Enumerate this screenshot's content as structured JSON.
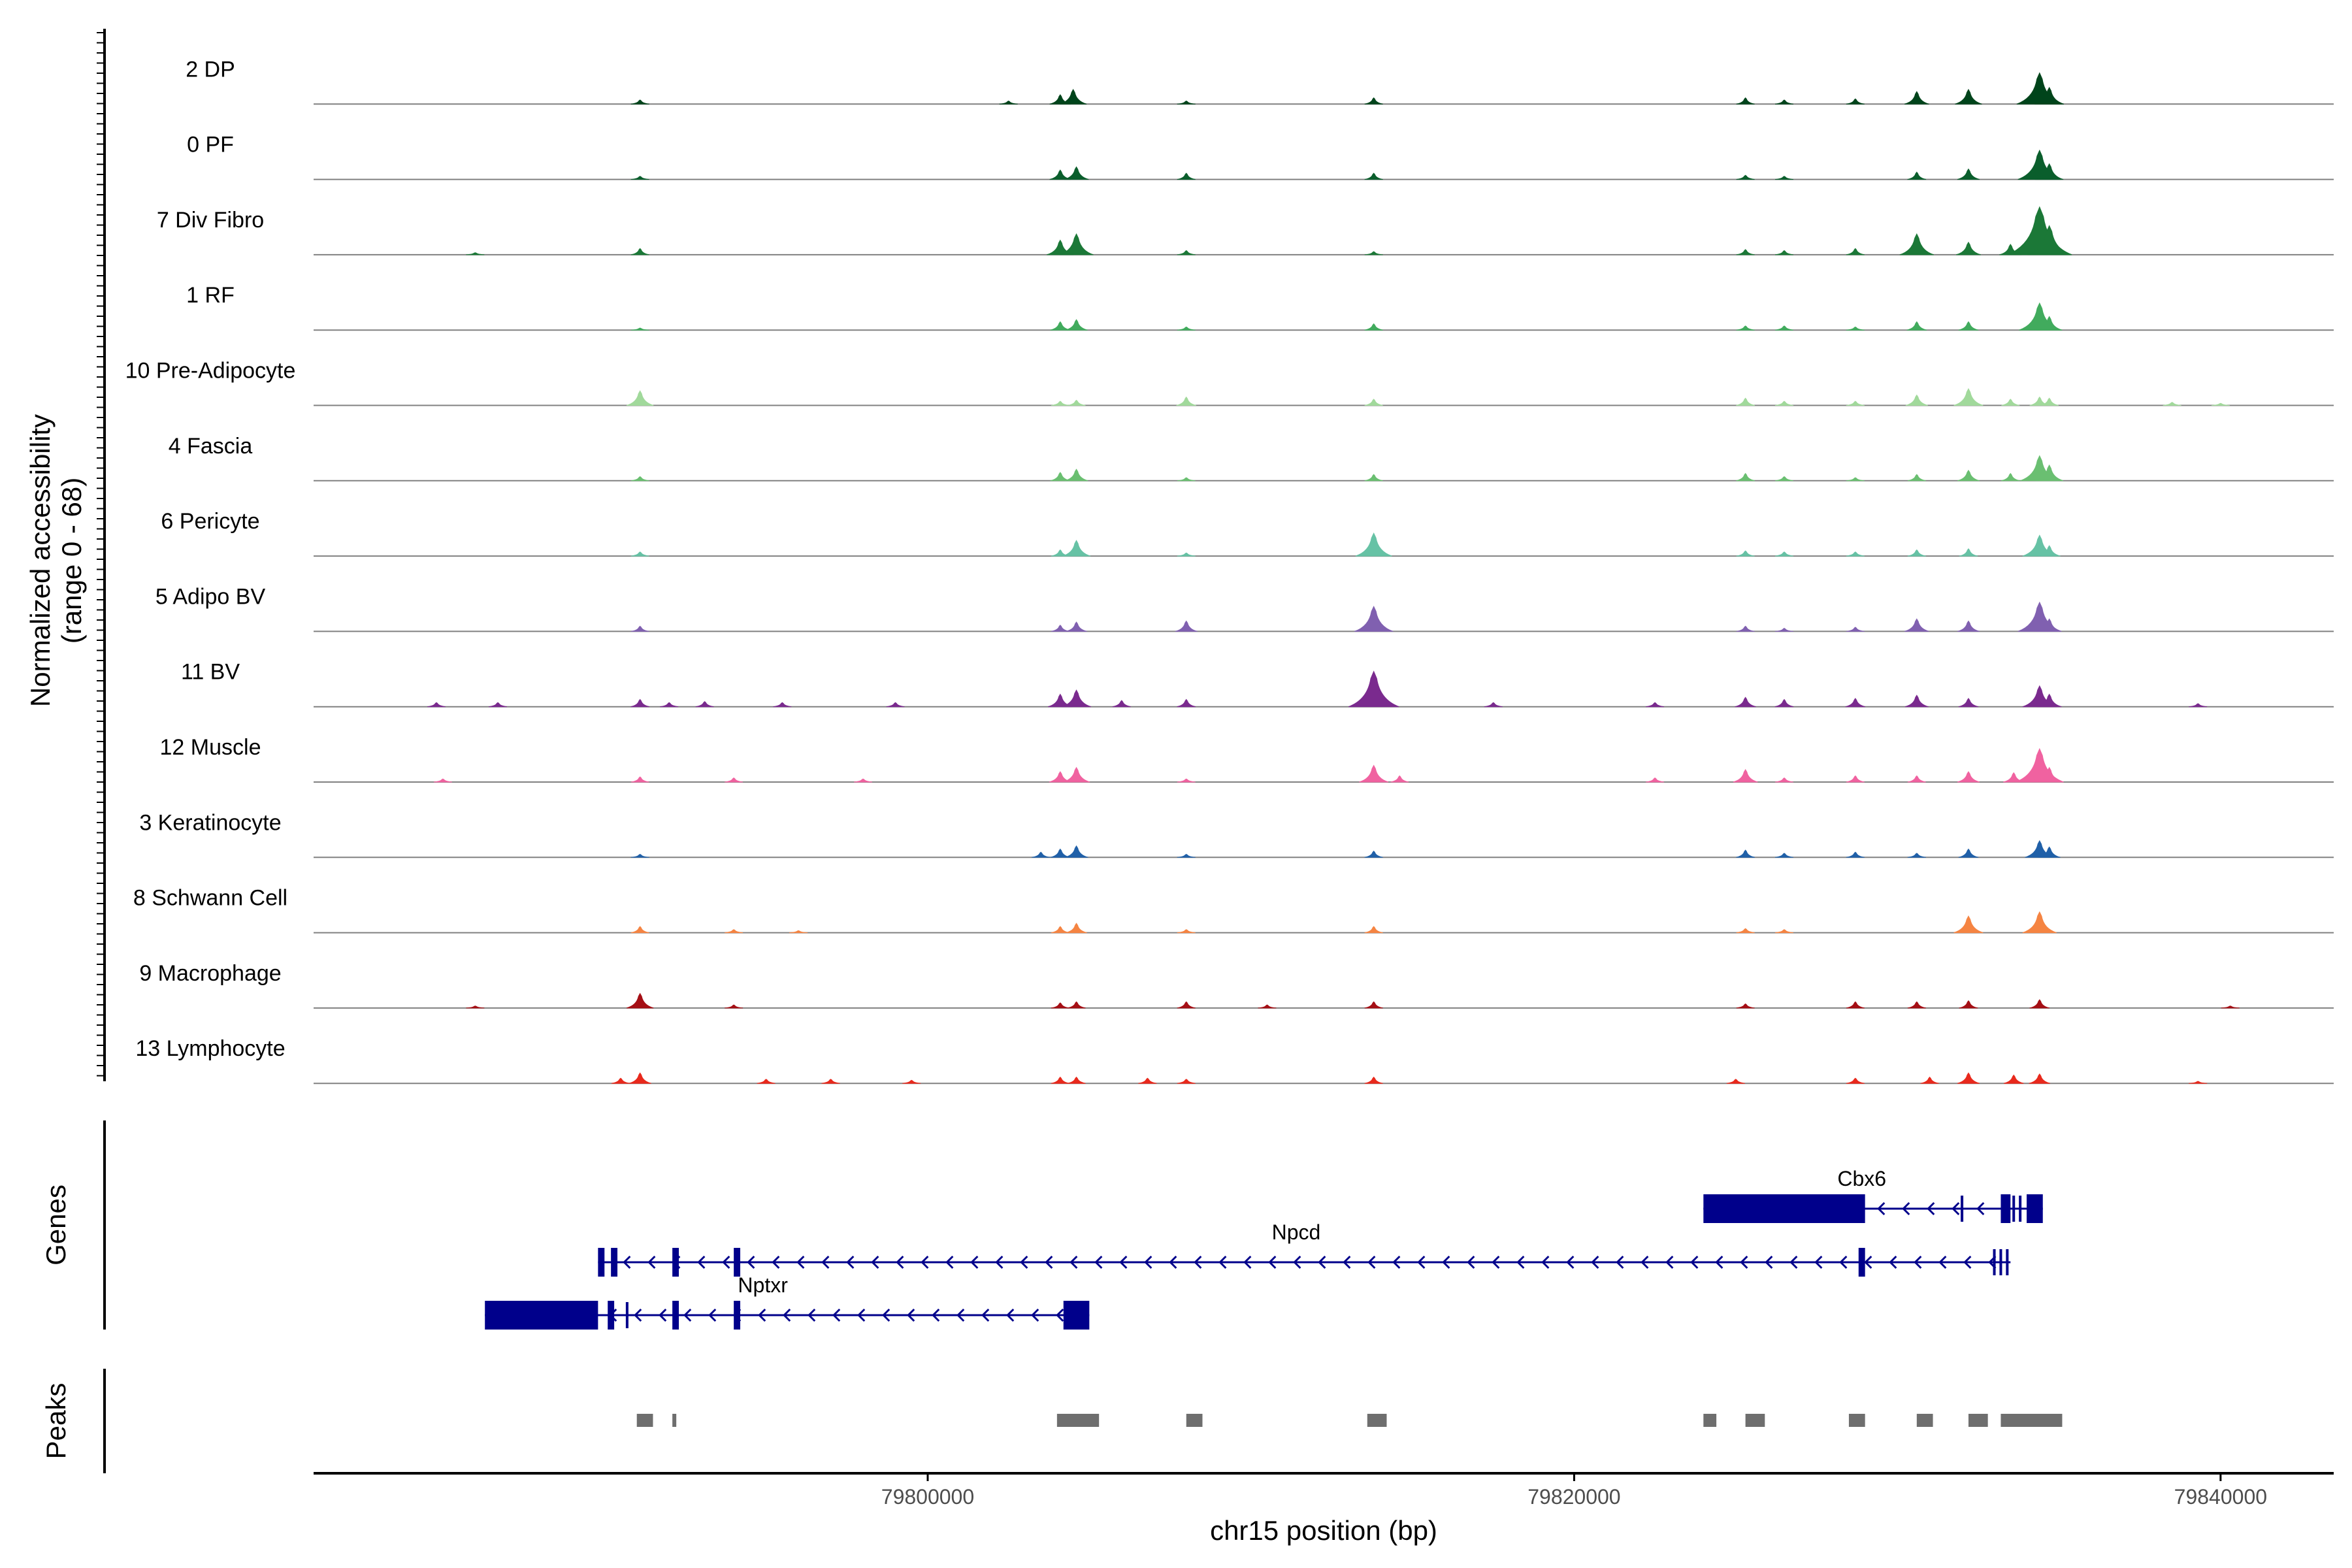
{
  "chart_data": {
    "type": "area",
    "title": "",
    "xlabel": "chr15 position (bp)",
    "ylabel": "Normalized accessibility",
    "ylabel_range": "(range 0 - 68)",
    "xlim": [
      79781000,
      79843500
    ],
    "ylim": [
      0,
      68
    ],
    "x_ticks": [
      {
        "value": 79800000,
        "label": "79800000"
      },
      {
        "value": 79820000,
        "label": "79820000"
      },
      {
        "value": 79840000,
        "label": "79840000"
      }
    ],
    "tracks": [
      {
        "name": "2 DP",
        "color": "#00441b",
        "peaks": [
          [
            79791100,
            4
          ],
          [
            79802500,
            3
          ],
          [
            79804100,
            9
          ],
          [
            79804500,
            14
          ],
          [
            79808000,
            3
          ],
          [
            79813800,
            6
          ],
          [
            79825300,
            6
          ],
          [
            79826500,
            4
          ],
          [
            79828700,
            5
          ],
          [
            79830600,
            12
          ],
          [
            79832200,
            14
          ],
          [
            79834400,
            30
          ],
          [
            79834700,
            16
          ]
        ]
      },
      {
        "name": "0 PF",
        "color": "#0a5e2c",
        "peaks": [
          [
            79791100,
            3
          ],
          [
            79804100,
            9
          ],
          [
            79804600,
            12
          ],
          [
            79808000,
            6
          ],
          [
            79813800,
            6
          ],
          [
            79825300,
            4
          ],
          [
            79826500,
            3
          ],
          [
            79830600,
            7
          ],
          [
            79832200,
            10
          ],
          [
            79834400,
            28
          ],
          [
            79834700,
            15
          ]
        ]
      },
      {
        "name": "7 Div Fibro",
        "color": "#1b7837",
        "peaks": [
          [
            79786000,
            2
          ],
          [
            79791100,
            6
          ],
          [
            79804100,
            14
          ],
          [
            79804600,
            20
          ],
          [
            79808000,
            4
          ],
          [
            79813800,
            3
          ],
          [
            79825300,
            5
          ],
          [
            79826500,
            4
          ],
          [
            79828700,
            6
          ],
          [
            79830600,
            20
          ],
          [
            79832200,
            12
          ],
          [
            79833500,
            10
          ],
          [
            79834400,
            46
          ],
          [
            79834700,
            28
          ]
        ]
      },
      {
        "name": "1 RF",
        "color": "#41ab5d",
        "peaks": [
          [
            79791100,
            2
          ],
          [
            79804100,
            8
          ],
          [
            79804600,
            10
          ],
          [
            79808000,
            3
          ],
          [
            79813800,
            6
          ],
          [
            79825300,
            4
          ],
          [
            79826500,
            4
          ],
          [
            79828700,
            3
          ],
          [
            79830600,
            8
          ],
          [
            79832200,
            8
          ],
          [
            79834400,
            26
          ],
          [
            79834700,
            13
          ]
        ]
      },
      {
        "name": "10 Pre-Adipocyte",
        "color": "#a1d99b",
        "peaks": [
          [
            79791100,
            14
          ],
          [
            79804100,
            4
          ],
          [
            79804600,
            5
          ],
          [
            79808000,
            8
          ],
          [
            79813800,
            6
          ],
          [
            79825300,
            7
          ],
          [
            79826500,
            4
          ],
          [
            79828700,
            4
          ],
          [
            79830600,
            10
          ],
          [
            79832200,
            16
          ],
          [
            79833500,
            6
          ],
          [
            79834400,
            8
          ],
          [
            79834700,
            7
          ],
          [
            79838500,
            3
          ],
          [
            79840000,
            2
          ]
        ]
      },
      {
        "name": "4 Fascia",
        "color": "#6abf71",
        "peaks": [
          [
            79791100,
            4
          ],
          [
            79804100,
            8
          ],
          [
            79804600,
            11
          ],
          [
            79808000,
            3
          ],
          [
            79813800,
            6
          ],
          [
            79825300,
            7
          ],
          [
            79826500,
            4
          ],
          [
            79828700,
            3
          ],
          [
            79830600,
            6
          ],
          [
            79832200,
            10
          ],
          [
            79833500,
            7
          ],
          [
            79834400,
            24
          ],
          [
            79834700,
            15
          ]
        ]
      },
      {
        "name": "6 Pericyte",
        "color": "#66c2a5",
        "peaks": [
          [
            79791100,
            4
          ],
          [
            79804100,
            6
          ],
          [
            79804600,
            15
          ],
          [
            79808000,
            3
          ],
          [
            79813800,
            22
          ],
          [
            79825300,
            5
          ],
          [
            79826500,
            4
          ],
          [
            79828700,
            4
          ],
          [
            79830600,
            6
          ],
          [
            79832200,
            7
          ],
          [
            79834400,
            20
          ],
          [
            79834700,
            10
          ]
        ]
      },
      {
        "name": "5 Adipo BV",
        "color": "#8060b0",
        "peaks": [
          [
            79791100,
            5
          ],
          [
            79804100,
            6
          ],
          [
            79804600,
            9
          ],
          [
            79808000,
            10
          ],
          [
            79813800,
            24
          ],
          [
            79825300,
            5
          ],
          [
            79826500,
            3
          ],
          [
            79828700,
            4
          ],
          [
            79830600,
            12
          ],
          [
            79832200,
            10
          ],
          [
            79834400,
            28
          ],
          [
            79834700,
            12
          ]
        ]
      },
      {
        "name": "11 BV",
        "color": "#7a2a8e",
        "peaks": [
          [
            79784800,
            4
          ],
          [
            79786700,
            4
          ],
          [
            79791100,
            7
          ],
          [
            79792000,
            4
          ],
          [
            79793100,
            5
          ],
          [
            79795500,
            4
          ],
          [
            79799000,
            4
          ],
          [
            79804100,
            12
          ],
          [
            79804600,
            16
          ],
          [
            79806000,
            6
          ],
          [
            79808000,
            7
          ],
          [
            79813800,
            34
          ],
          [
            79817500,
            4
          ],
          [
            79822500,
            4
          ],
          [
            79825300,
            9
          ],
          [
            79826500,
            7
          ],
          [
            79828700,
            8
          ],
          [
            79830600,
            11
          ],
          [
            79832200,
            8
          ],
          [
            79834400,
            20
          ],
          [
            79834700,
            12
          ],
          [
            79839300,
            3
          ]
        ]
      },
      {
        "name": "12 Muscle",
        "color": "#f062a0",
        "peaks": [
          [
            79785000,
            3
          ],
          [
            79791100,
            5
          ],
          [
            79794000,
            4
          ],
          [
            79798000,
            3
          ],
          [
            79804100,
            10
          ],
          [
            79804600,
            14
          ],
          [
            79808000,
            3
          ],
          [
            79813800,
            16
          ],
          [
            79814600,
            6
          ],
          [
            79822500,
            4
          ],
          [
            79825300,
            12
          ],
          [
            79826500,
            4
          ],
          [
            79828700,
            6
          ],
          [
            79830600,
            6
          ],
          [
            79832200,
            10
          ],
          [
            79833600,
            9
          ],
          [
            79834400,
            32
          ],
          [
            79834700,
            14
          ]
        ]
      },
      {
        "name": "3 Keratinocyte",
        "color": "#2060a8",
        "peaks": [
          [
            79791100,
            3
          ],
          [
            79803500,
            5
          ],
          [
            79804100,
            8
          ],
          [
            79804600,
            11
          ],
          [
            79808000,
            3
          ],
          [
            79813800,
            6
          ],
          [
            79825300,
            7
          ],
          [
            79826500,
            4
          ],
          [
            79828700,
            5
          ],
          [
            79830600,
            4
          ],
          [
            79832200,
            8
          ],
          [
            79834400,
            16
          ],
          [
            79834700,
            10
          ]
        ]
      },
      {
        "name": "8 Schwann Cell",
        "color": "#f58442",
        "peaks": [
          [
            79791100,
            6
          ],
          [
            79794000,
            3
          ],
          [
            79796000,
            2
          ],
          [
            79804100,
            6
          ],
          [
            79804600,
            9
          ],
          [
            79808000,
            3
          ],
          [
            79813800,
            6
          ],
          [
            79825300,
            4
          ],
          [
            79826500,
            3
          ],
          [
            79832200,
            16
          ],
          [
            79834400,
            20
          ]
        ]
      },
      {
        "name": "9 Macrophage",
        "color": "#a50f15",
        "peaks": [
          [
            79786000,
            2
          ],
          [
            79791100,
            14
          ],
          [
            79794000,
            3
          ],
          [
            79804100,
            5
          ],
          [
            79804600,
            6
          ],
          [
            79808000,
            6
          ],
          [
            79810500,
            3
          ],
          [
            79813800,
            6
          ],
          [
            79825300,
            4
          ],
          [
            79828700,
            6
          ],
          [
            79830600,
            6
          ],
          [
            79832200,
            7
          ],
          [
            79834400,
            8
          ],
          [
            79840300,
            2
          ]
        ]
      },
      {
        "name": "13 Lymphocyte",
        "color": "#e8291c",
        "peaks": [
          [
            79790500,
            5
          ],
          [
            79791100,
            10
          ],
          [
            79795000,
            4
          ],
          [
            79797000,
            4
          ],
          [
            79799500,
            3
          ],
          [
            79804100,
            6
          ],
          [
            79804600,
            6
          ],
          [
            79806800,
            5
          ],
          [
            79808000,
            4
          ],
          [
            79813800,
            6
          ],
          [
            79825000,
            4
          ],
          [
            79828700,
            5
          ],
          [
            79831000,
            6
          ],
          [
            79832200,
            10
          ],
          [
            79833600,
            8
          ],
          [
            79834400,
            9
          ],
          [
            79839300,
            2
          ]
        ]
      }
    ],
    "genes_label": "Genes",
    "genes": [
      {
        "name": "Cbx6",
        "strand": "-",
        "start": 79824000,
        "end": 79834500,
        "exons": [
          [
            79824000,
            79829000
          ],
          [
            79833200,
            79833500
          ],
          [
            79834000,
            79834500
          ]
        ],
        "small_exons": [
          79832000,
          79833600,
          79833800
        ]
      },
      {
        "name": "Npcd",
        "strand": "-",
        "start": 79789800,
        "end": 79833500,
        "exons": [
          [
            79789800,
            79790000
          ],
          [
            79790200,
            79790400
          ],
          [
            79792100,
            79792300
          ],
          [
            79794000,
            79794200
          ],
          [
            79828800,
            79829000
          ]
        ],
        "small_exons": [
          79833000,
          79833200,
          79833400
        ]
      },
      {
        "name": "Nptxr",
        "strand": "-",
        "start": 79786300,
        "end": 79805000,
        "exons": [
          [
            79786300,
            79789800
          ],
          [
            79790100,
            79790300
          ],
          [
            79792100,
            79792300
          ],
          [
            79794000,
            79794200
          ],
          [
            79804200,
            79805000
          ]
        ],
        "small_exons": [
          79790700
        ]
      }
    ],
    "peaks_label": "Peaks",
    "peaks": [
      [
        79791000,
        79791500
      ],
      [
        79792100,
        79792200
      ],
      [
        79804000,
        79805300
      ],
      [
        79808000,
        79808500
      ],
      [
        79813600,
        79814200
      ],
      [
        79824000,
        79824400
      ],
      [
        79825300,
        79825900
      ],
      [
        79828500,
        79829000
      ],
      [
        79830600,
        79831100
      ],
      [
        79832200,
        79832800
      ],
      [
        79833200,
        79835100
      ]
    ]
  }
}
